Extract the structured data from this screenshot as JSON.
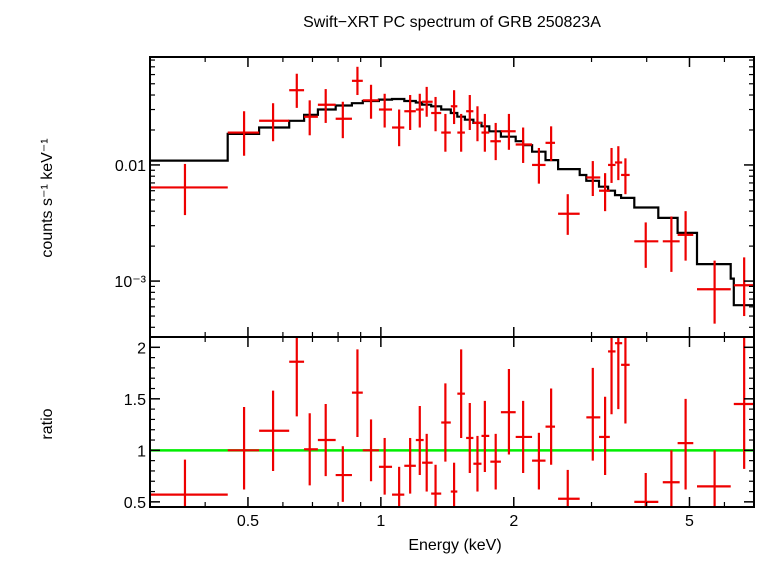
{
  "title": "Swift−XRT PC spectrum of GRB 250823A",
  "chart_data": [
    {
      "type": "scatter",
      "panel": "spectrum",
      "ylabel": "counts s⁻¹ keV⁻¹",
      "xscale": "log",
      "yscale": "log",
      "xlim": [
        0.3,
        7.0
      ],
      "ylim": [
        0.00033,
        0.085
      ],
      "yticks": [
        {
          "value": 0.01,
          "label": "0.01"
        },
        {
          "value": 0.001,
          "label": "10⁻³"
        }
      ],
      "colors": {
        "data": "#ee0000",
        "model": "#000000"
      },
      "series": [
        {
          "kind": "data",
          "points": [
            {
              "x": 0.36,
              "xlo": 0.3,
              "xhi": 0.45,
              "y": 0.0064,
              "ylo": 0.0037,
              "yhi": 0.0102
            },
            {
              "x": 0.49,
              "xlo": 0.45,
              "xhi": 0.53,
              "y": 0.019,
              "ylo": 0.012,
              "yhi": 0.029
            },
            {
              "x": 0.57,
              "xlo": 0.53,
              "xhi": 0.62,
              "y": 0.024,
              "ylo": 0.016,
              "yhi": 0.034
            },
            {
              "x": 0.645,
              "xlo": 0.62,
              "xhi": 0.67,
              "y": 0.044,
              "ylo": 0.031,
              "yhi": 0.061
            },
            {
              "x": 0.69,
              "xlo": 0.67,
              "xhi": 0.72,
              "y": 0.026,
              "ylo": 0.018,
              "yhi": 0.036
            },
            {
              "x": 0.75,
              "xlo": 0.72,
              "xhi": 0.79,
              "y": 0.033,
              "ylo": 0.023,
              "yhi": 0.045
            },
            {
              "x": 0.82,
              "xlo": 0.79,
              "xhi": 0.86,
              "y": 0.025,
              "ylo": 0.017,
              "yhi": 0.035
            },
            {
              "x": 0.885,
              "xlo": 0.86,
              "xhi": 0.91,
              "y": 0.053,
              "ylo": 0.04,
              "yhi": 0.07
            },
            {
              "x": 0.95,
              "xlo": 0.91,
              "xhi": 0.99,
              "y": 0.036,
              "ylo": 0.025,
              "yhi": 0.049
            },
            {
              "x": 1.02,
              "xlo": 0.99,
              "xhi": 1.06,
              "y": 0.03,
              "ylo": 0.021,
              "yhi": 0.041
            },
            {
              "x": 1.1,
              "xlo": 1.06,
              "xhi": 1.13,
              "y": 0.021,
              "ylo": 0.0145,
              "yhi": 0.03
            },
            {
              "x": 1.165,
              "xlo": 1.13,
              "xhi": 1.2,
              "y": 0.029,
              "ylo": 0.02,
              "yhi": 0.04
            },
            {
              "x": 1.225,
              "xlo": 1.2,
              "xhi": 1.25,
              "y": 0.03,
              "ylo": 0.021,
              "yhi": 0.041
            },
            {
              "x": 1.27,
              "xlo": 1.24,
              "xhi": 1.31,
              "y": 0.035,
              "ylo": 0.026,
              "yhi": 0.047
            },
            {
              "x": 1.33,
              "xlo": 1.3,
              "xhi": 1.37,
              "y": 0.028,
              "ylo": 0.0195,
              "yhi": 0.0385
            },
            {
              "x": 1.4,
              "xlo": 1.37,
              "xhi": 1.44,
              "y": 0.019,
              "ylo": 0.013,
              "yhi": 0.0275
            },
            {
              "x": 1.465,
              "xlo": 1.44,
              "xhi": 1.49,
              "y": 0.032,
              "ylo": 0.0225,
              "yhi": 0.044
            },
            {
              "x": 1.52,
              "xlo": 1.49,
              "xhi": 1.55,
              "y": 0.019,
              "ylo": 0.013,
              "yhi": 0.0275
            },
            {
              "x": 1.59,
              "xlo": 1.56,
              "xhi": 1.62,
              "y": 0.029,
              "ylo": 0.02,
              "yhi": 0.04
            },
            {
              "x": 1.655,
              "xlo": 1.62,
              "xhi": 1.69,
              "y": 0.023,
              "ylo": 0.016,
              "yhi": 0.032
            },
            {
              "x": 1.72,
              "xlo": 1.69,
              "xhi": 1.76,
              "y": 0.019,
              "ylo": 0.013,
              "yhi": 0.0275
            },
            {
              "x": 1.82,
              "xlo": 1.77,
              "xhi": 1.87,
              "y": 0.016,
              "ylo": 0.011,
              "yhi": 0.023
            },
            {
              "x": 1.95,
              "xlo": 1.87,
              "xhi": 2.02,
              "y": 0.0195,
              "ylo": 0.0135,
              "yhi": 0.0275
            },
            {
              "x": 2.1,
              "xlo": 2.02,
              "xhi": 2.2,
              "y": 0.015,
              "ylo": 0.0104,
              "yhi": 0.021
            },
            {
              "x": 2.28,
              "xlo": 2.2,
              "xhi": 2.36,
              "y": 0.01,
              "ylo": 0.0069,
              "yhi": 0.014
            },
            {
              "x": 2.43,
              "xlo": 2.36,
              "xhi": 2.48,
              "y": 0.0155,
              "ylo": 0.0108,
              "yhi": 0.0215
            },
            {
              "x": 2.65,
              "xlo": 2.52,
              "xhi": 2.82,
              "y": 0.0038,
              "ylo": 0.0025,
              "yhi": 0.0056
            },
            {
              "x": 3.02,
              "xlo": 2.92,
              "xhi": 3.14,
              "y": 0.0078,
              "ylo": 0.0054,
              "yhi": 0.0108
            },
            {
              "x": 3.22,
              "xlo": 3.12,
              "xhi": 3.3,
              "y": 0.006,
              "ylo": 0.004,
              "yhi": 0.0085
            },
            {
              "x": 3.33,
              "xlo": 3.27,
              "xhi": 3.4,
              "y": 0.01,
              "ylo": 0.007,
              "yhi": 0.014
            },
            {
              "x": 3.45,
              "xlo": 3.39,
              "xhi": 3.52,
              "y": 0.0105,
              "ylo": 0.0074,
              "yhi": 0.0145
            },
            {
              "x": 3.58,
              "xlo": 3.5,
              "xhi": 3.66,
              "y": 0.0082,
              "ylo": 0.0056,
              "yhi": 0.0114
            },
            {
              "x": 3.98,
              "xlo": 3.75,
              "xhi": 4.25,
              "y": 0.0022,
              "ylo": 0.0013,
              "yhi": 0.0032
            },
            {
              "x": 4.55,
              "xlo": 4.35,
              "xhi": 4.75,
              "y": 0.0022,
              "ylo": 0.0012,
              "yhi": 0.0036
            },
            {
              "x": 4.9,
              "xlo": 4.7,
              "xhi": 5.1,
              "y": 0.0025,
              "ylo": 0.0015,
              "yhi": 0.004
            },
            {
              "x": 5.7,
              "xlo": 5.2,
              "xhi": 6.2,
              "y": 0.00085,
              "ylo": 0.00043,
              "yhi": 0.0015
            },
            {
              "x": 6.65,
              "xlo": 6.3,
              "xhi": 7.0,
              "y": 0.00092,
              "ylo": 0.0005,
              "yhi": 0.0016
            }
          ]
        },
        {
          "kind": "model",
          "steps": [
            [
              0.3,
              0.0109
            ],
            [
              0.45,
              0.0185
            ],
            [
              0.53,
              0.021
            ],
            [
              0.62,
              0.024
            ],
            [
              0.67,
              0.027
            ],
            [
              0.72,
              0.03
            ],
            [
              0.79,
              0.0325
            ],
            [
              0.86,
              0.034
            ],
            [
              0.91,
              0.0355
            ],
            [
              0.99,
              0.0365
            ],
            [
              1.06,
              0.037
            ],
            [
              1.13,
              0.0355
            ],
            [
              1.2,
              0.0345
            ],
            [
              1.24,
              0.033
            ],
            [
              1.3,
              0.032
            ],
            [
              1.37,
              0.03
            ],
            [
              1.44,
              0.028
            ],
            [
              1.49,
              0.026
            ],
            [
              1.55,
              0.0245
            ],
            [
              1.62,
              0.023
            ],
            [
              1.69,
              0.0215
            ],
            [
              1.76,
              0.0195
            ],
            [
              1.87,
              0.0175
            ],
            [
              2.02,
              0.016
            ],
            [
              2.1,
              0.0148
            ],
            [
              2.2,
              0.013
            ],
            [
              2.36,
              0.011
            ],
            [
              2.52,
              0.0092
            ],
            [
              2.82,
              0.0082
            ],
            [
              2.92,
              0.0073
            ],
            [
              3.12,
              0.0065
            ],
            [
              3.27,
              0.006
            ],
            [
              3.39,
              0.0055
            ],
            [
              3.5,
              0.0052
            ],
            [
              3.75,
              0.0043
            ],
            [
              4.25,
              0.0035
            ],
            [
              4.7,
              0.0026
            ],
            [
              5.2,
              0.0014
            ],
            [
              6.2,
              0.00105
            ],
            [
              6.3,
              0.00062
            ],
            [
              7.0,
              0.00062
            ]
          ]
        }
      ]
    },
    {
      "type": "scatter",
      "panel": "ratio",
      "xlabel": "Energy (keV)",
      "ylabel": "ratio",
      "xscale": "log",
      "xlim": [
        0.3,
        7.0
      ],
      "ylim": [
        0.45,
        2.1
      ],
      "yticks": [
        {
          "value": 0.5,
          "label": "0.5"
        },
        {
          "value": 1,
          "label": "1"
        },
        {
          "value": 1.5,
          "label": "1.5"
        },
        {
          "value": 2,
          "label": "2"
        }
      ],
      "xticks": [
        {
          "value": 0.5,
          "label": "0.5"
        },
        {
          "value": 1,
          "label": "1"
        },
        {
          "value": 2,
          "label": "2"
        },
        {
          "value": 5,
          "label": "5"
        }
      ],
      "reference_line": 1,
      "colors": {
        "data": "#ee0000",
        "reference": "#00ee00"
      },
      "points": [
        {
          "x": 0.36,
          "xlo": 0.3,
          "xhi": 0.45,
          "y": 0.57,
          "ylo": 0.45,
          "yhi": 0.91
        },
        {
          "x": 0.49,
          "xlo": 0.45,
          "xhi": 0.53,
          "y": 1.0,
          "ylo": 0.62,
          "yhi": 1.42
        },
        {
          "x": 0.57,
          "xlo": 0.53,
          "xhi": 0.62,
          "y": 1.19,
          "ylo": 0.8,
          "yhi": 1.58
        },
        {
          "x": 0.645,
          "xlo": 0.62,
          "xhi": 0.67,
          "y": 1.86,
          "ylo": 1.33,
          "yhi": 2.1
        },
        {
          "x": 0.69,
          "xlo": 0.67,
          "xhi": 0.72,
          "y": 1.01,
          "ylo": 0.66,
          "yhi": 1.36
        },
        {
          "x": 0.75,
          "xlo": 0.72,
          "xhi": 0.79,
          "y": 1.1,
          "ylo": 0.75,
          "yhi": 1.45
        },
        {
          "x": 0.82,
          "xlo": 0.79,
          "xhi": 0.86,
          "y": 0.76,
          "ylo": 0.5,
          "yhi": 1.04
        },
        {
          "x": 0.885,
          "xlo": 0.86,
          "xhi": 0.91,
          "y": 1.56,
          "ylo": 1.13,
          "yhi": 1.98
        },
        {
          "x": 0.95,
          "xlo": 0.91,
          "xhi": 0.99,
          "y": 1.0,
          "ylo": 0.7,
          "yhi": 1.3
        },
        {
          "x": 1.02,
          "xlo": 0.99,
          "xhi": 1.06,
          "y": 0.84,
          "ylo": 0.57,
          "yhi": 1.12
        },
        {
          "x": 1.1,
          "xlo": 1.06,
          "xhi": 1.13,
          "y": 0.57,
          "ylo": 0.45,
          "yhi": 0.84
        },
        {
          "x": 1.165,
          "xlo": 1.13,
          "xhi": 1.2,
          "y": 0.85,
          "ylo": 0.58,
          "yhi": 1.12
        },
        {
          "x": 1.225,
          "xlo": 1.2,
          "xhi": 1.25,
          "y": 1.1,
          "ylo": 0.76,
          "yhi": 1.43
        },
        {
          "x": 1.27,
          "xlo": 1.24,
          "xhi": 1.31,
          "y": 0.88,
          "ylo": 0.6,
          "yhi": 1.16
        },
        {
          "x": 1.33,
          "xlo": 1.3,
          "xhi": 1.37,
          "y": 0.58,
          "ylo": 0.45,
          "yhi": 0.86
        },
        {
          "x": 1.4,
          "xlo": 1.37,
          "xhi": 1.44,
          "y": 1.27,
          "ylo": 0.89,
          "yhi": 1.65
        },
        {
          "x": 1.465,
          "xlo": 1.44,
          "xhi": 1.49,
          "y": 0.6,
          "ylo": 0.45,
          "yhi": 0.88
        },
        {
          "x": 1.52,
          "xlo": 1.49,
          "xhi": 1.55,
          "y": 1.55,
          "ylo": 1.12,
          "yhi": 1.98
        },
        {
          "x": 1.59,
          "xlo": 1.56,
          "xhi": 1.62,
          "y": 1.12,
          "ylo": 0.78,
          "yhi": 1.46
        },
        {
          "x": 1.655,
          "xlo": 1.62,
          "xhi": 1.69,
          "y": 0.87,
          "ylo": 0.6,
          "yhi": 1.14
        },
        {
          "x": 1.72,
          "xlo": 1.69,
          "xhi": 1.76,
          "y": 1.14,
          "ylo": 0.79,
          "yhi": 1.48
        },
        {
          "x": 1.82,
          "xlo": 1.77,
          "xhi": 1.87,
          "y": 0.89,
          "ylo": 0.62,
          "yhi": 1.16
        },
        {
          "x": 1.95,
          "xlo": 1.87,
          "xhi": 2.02,
          "y": 1.37,
          "ylo": 0.96,
          "yhi": 1.79
        },
        {
          "x": 2.1,
          "xlo": 2.02,
          "xhi": 2.2,
          "y": 1.13,
          "ylo": 0.78,
          "yhi": 1.48
        },
        {
          "x": 2.28,
          "xlo": 2.2,
          "xhi": 2.36,
          "y": 0.9,
          "ylo": 0.62,
          "yhi": 1.17
        },
        {
          "x": 2.43,
          "xlo": 2.36,
          "xhi": 2.48,
          "y": 1.23,
          "ylo": 0.86,
          "yhi": 1.6
        },
        {
          "x": 2.65,
          "xlo": 2.52,
          "xhi": 2.82,
          "y": 0.53,
          "ylo": 0.45,
          "yhi": 0.81
        },
        {
          "x": 3.02,
          "xlo": 2.92,
          "xhi": 3.14,
          "y": 1.32,
          "ylo": 0.9,
          "yhi": 1.8
        },
        {
          "x": 3.22,
          "xlo": 3.12,
          "xhi": 3.3,
          "y": 1.13,
          "ylo": 0.76,
          "yhi": 1.52
        },
        {
          "x": 3.33,
          "xlo": 3.27,
          "xhi": 3.4,
          "y": 1.96,
          "ylo": 1.35,
          "yhi": 2.1
        },
        {
          "x": 3.45,
          "xlo": 3.39,
          "xhi": 3.52,
          "y": 2.04,
          "ylo": 1.4,
          "yhi": 2.1
        },
        {
          "x": 3.58,
          "xlo": 3.5,
          "xhi": 3.66,
          "y": 1.83,
          "ylo": 1.26,
          "yhi": 2.1
        },
        {
          "x": 3.98,
          "xlo": 3.75,
          "xhi": 4.25,
          "y": 0.5,
          "ylo": 0.45,
          "yhi": 0.78
        },
        {
          "x": 4.55,
          "xlo": 4.35,
          "xhi": 4.75,
          "y": 0.69,
          "ylo": 0.45,
          "yhi": 1.0
        },
        {
          "x": 4.9,
          "xlo": 4.7,
          "xhi": 5.1,
          "y": 1.07,
          "ylo": 0.62,
          "yhi": 1.5
        },
        {
          "x": 5.7,
          "xlo": 5.2,
          "xhi": 6.2,
          "y": 0.65,
          "ylo": 0.45,
          "yhi": 1.0
        },
        {
          "x": 6.65,
          "xlo": 6.3,
          "xhi": 7.0,
          "y": 1.45,
          "ylo": 0.82,
          "yhi": 2.1
        }
      ]
    }
  ]
}
